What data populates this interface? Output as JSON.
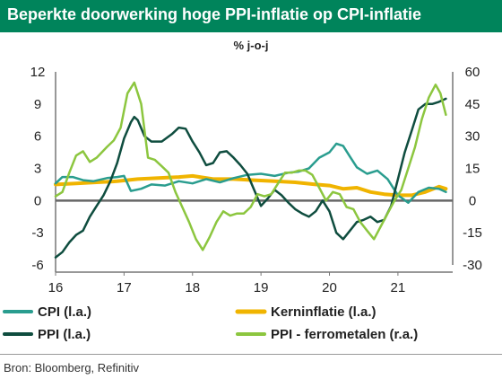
{
  "title": "Beperkte doorwerking hoge PPI-inflatie op CPI-inflatie",
  "unit": "% j-o-j",
  "source": "Bron: Bloomberg, Refinitiv",
  "chart_data": {
    "type": "line",
    "x_ticks": [
      {
        "x": 16,
        "label": "16"
      },
      {
        "x": 17,
        "label": "17"
      },
      {
        "x": 18,
        "label": "18"
      },
      {
        "x": 19,
        "label": "19"
      },
      {
        "x": 20,
        "label": "20"
      },
      {
        "x": 21,
        "label": "21"
      }
    ],
    "xlim": [
      16,
      21.8
    ],
    "left_axis": {
      "ylim": [
        -6,
        12
      ],
      "ticks": [
        -6,
        -3,
        0,
        3,
        6,
        9,
        12
      ]
    },
    "right_axis": {
      "ylim": [
        -30,
        60
      ],
      "ticks": [
        -30,
        -15,
        0,
        15,
        30,
        45,
        60
      ]
    },
    "grid": false,
    "legend_position": "bottom",
    "series": [
      {
        "name": "CPI (l.a.)",
        "axis": "left",
        "color": "#2a9d8f",
        "width": 2.5,
        "points": [
          [
            16.0,
            1.6
          ],
          [
            16.1,
            2.2
          ],
          [
            16.25,
            2.2
          ],
          [
            16.4,
            1.9
          ],
          [
            16.55,
            1.8
          ],
          [
            16.75,
            2.1
          ],
          [
            16.9,
            2.2
          ],
          [
            17.0,
            2.3
          ],
          [
            17.1,
            0.9
          ],
          [
            17.25,
            1.1
          ],
          [
            17.4,
            1.5
          ],
          [
            17.6,
            1.4
          ],
          [
            17.8,
            1.8
          ],
          [
            18.0,
            1.6
          ],
          [
            18.2,
            2.0
          ],
          [
            18.4,
            1.7
          ],
          [
            18.6,
            2.1
          ],
          [
            18.8,
            2.4
          ],
          [
            19.0,
            2.5
          ],
          [
            19.2,
            2.3
          ],
          [
            19.4,
            2.6
          ],
          [
            19.55,
            2.7
          ],
          [
            19.7,
            3.0
          ],
          [
            19.85,
            4.0
          ],
          [
            20.0,
            4.5
          ],
          [
            20.1,
            5.3
          ],
          [
            20.2,
            5.1
          ],
          [
            20.3,
            4.1
          ],
          [
            20.4,
            3.1
          ],
          [
            20.55,
            2.5
          ],
          [
            20.7,
            2.8
          ],
          [
            20.85,
            2.0
          ],
          [
            21.0,
            0.5
          ],
          [
            21.15,
            -0.2
          ],
          [
            21.3,
            0.8
          ],
          [
            21.45,
            1.2
          ],
          [
            21.6,
            1.1
          ],
          [
            21.7,
            0.8
          ]
        ]
      },
      {
        "name": "Kerninflatie (l.a.)",
        "axis": "left",
        "color": "#f0b400",
        "width": 4,
        "points": [
          [
            16.0,
            1.5
          ],
          [
            16.3,
            1.6
          ],
          [
            16.6,
            1.7
          ],
          [
            16.9,
            1.8
          ],
          [
            17.2,
            2.0
          ],
          [
            17.5,
            2.1
          ],
          [
            17.8,
            2.2
          ],
          [
            18.0,
            2.3
          ],
          [
            18.3,
            2.0
          ],
          [
            18.6,
            2.0
          ],
          [
            18.9,
            1.9
          ],
          [
            19.2,
            1.8
          ],
          [
            19.5,
            1.7
          ],
          [
            19.8,
            1.5
          ],
          [
            20.0,
            1.4
          ],
          [
            20.2,
            1.1
          ],
          [
            20.4,
            1.2
          ],
          [
            20.6,
            0.8
          ],
          [
            20.8,
            0.6
          ],
          [
            21.0,
            0.5
          ],
          [
            21.2,
            0.5
          ],
          [
            21.4,
            0.8
          ],
          [
            21.6,
            1.3
          ],
          [
            21.7,
            1.1
          ]
        ]
      },
      {
        "name": "PPI (l.a.)",
        "axis": "left",
        "color": "#0f4d3f",
        "width": 2.5,
        "points": [
          [
            16.0,
            -5.3
          ],
          [
            16.1,
            -4.8
          ],
          [
            16.2,
            -3.9
          ],
          [
            16.3,
            -3.2
          ],
          [
            16.4,
            -2.8
          ],
          [
            16.5,
            -1.5
          ],
          [
            16.6,
            -0.5
          ],
          [
            16.7,
            0.5
          ],
          [
            16.8,
            1.8
          ],
          [
            16.9,
            3.5
          ],
          [
            17.0,
            5.8
          ],
          [
            17.1,
            7.3
          ],
          [
            17.15,
            7.8
          ],
          [
            17.2,
            7.5
          ],
          [
            17.3,
            6.0
          ],
          [
            17.4,
            5.5
          ],
          [
            17.55,
            5.5
          ],
          [
            17.7,
            6.2
          ],
          [
            17.8,
            6.8
          ],
          [
            17.9,
            6.7
          ],
          [
            18.0,
            5.5
          ],
          [
            18.1,
            4.5
          ],
          [
            18.2,
            3.3
          ],
          [
            18.3,
            3.5
          ],
          [
            18.4,
            4.5
          ],
          [
            18.5,
            4.6
          ],
          [
            18.6,
            4.0
          ],
          [
            18.7,
            3.3
          ],
          [
            18.8,
            2.5
          ],
          [
            18.9,
            1.0
          ],
          [
            19.0,
            -0.5
          ],
          [
            19.1,
            0.2
          ],
          [
            19.2,
            1.0
          ],
          [
            19.3,
            0.5
          ],
          [
            19.4,
            -0.2
          ],
          [
            19.5,
            -0.8
          ],
          [
            19.6,
            -1.2
          ],
          [
            19.7,
            -1.5
          ],
          [
            19.8,
            -1.0
          ],
          [
            19.9,
            0.0
          ],
          [
            20.0,
            -1.0
          ],
          [
            20.1,
            -3.0
          ],
          [
            20.2,
            -3.6
          ],
          [
            20.3,
            -2.8
          ],
          [
            20.4,
            -2.0
          ],
          [
            20.5,
            -1.8
          ],
          [
            20.6,
            -1.5
          ],
          [
            20.7,
            -2.0
          ],
          [
            20.8,
            -1.8
          ],
          [
            20.9,
            -0.5
          ],
          [
            21.0,
            2.0
          ],
          [
            21.1,
            4.5
          ],
          [
            21.2,
            6.5
          ],
          [
            21.3,
            8.5
          ],
          [
            21.4,
            9.0
          ],
          [
            21.5,
            9.0
          ],
          [
            21.6,
            9.2
          ],
          [
            21.7,
            9.5
          ]
        ]
      },
      {
        "name": "PPI - ferrometalen (r.a.)",
        "axis": "right",
        "color": "#8cc63f",
        "width": 2.5,
        "points": [
          [
            16.0,
            2
          ],
          [
            16.1,
            4
          ],
          [
            16.2,
            13
          ],
          [
            16.3,
            21
          ],
          [
            16.4,
            23
          ],
          [
            16.5,
            18
          ],
          [
            16.6,
            20
          ],
          [
            16.75,
            25
          ],
          [
            16.85,
            28
          ],
          [
            16.95,
            34
          ],
          [
            17.05,
            50
          ],
          [
            17.15,
            55
          ],
          [
            17.25,
            45
          ],
          [
            17.35,
            20
          ],
          [
            17.45,
            19
          ],
          [
            17.55,
            16
          ],
          [
            17.65,
            13
          ],
          [
            17.75,
            4
          ],
          [
            17.85,
            -3
          ],
          [
            17.95,
            -10
          ],
          [
            18.05,
            -18
          ],
          [
            18.15,
            -23
          ],
          [
            18.25,
            -17
          ],
          [
            18.35,
            -10
          ],
          [
            18.45,
            -5
          ],
          [
            18.55,
            -7
          ],
          [
            18.65,
            -6
          ],
          [
            18.75,
            -6
          ],
          [
            18.85,
            -3
          ],
          [
            18.95,
            3
          ],
          [
            19.05,
            2
          ],
          [
            19.15,
            3
          ],
          [
            19.25,
            8
          ],
          [
            19.35,
            13
          ],
          [
            19.45,
            13
          ],
          [
            19.55,
            14
          ],
          [
            19.65,
            14
          ],
          [
            19.75,
            12
          ],
          [
            19.85,
            6
          ],
          [
            19.95,
            0
          ],
          [
            20.05,
            4
          ],
          [
            20.15,
            3
          ],
          [
            20.25,
            -3
          ],
          [
            20.35,
            -4
          ],
          [
            20.45,
            -10
          ],
          [
            20.55,
            -14
          ],
          [
            20.65,
            -18
          ],
          [
            20.75,
            -12
          ],
          [
            20.85,
            -6
          ],
          [
            20.95,
            0
          ],
          [
            21.05,
            5
          ],
          [
            21.15,
            15
          ],
          [
            21.25,
            25
          ],
          [
            21.35,
            38
          ],
          [
            21.45,
            48
          ],
          [
            21.55,
            54
          ],
          [
            21.62,
            50
          ],
          [
            21.7,
            40
          ]
        ]
      }
    ]
  }
}
